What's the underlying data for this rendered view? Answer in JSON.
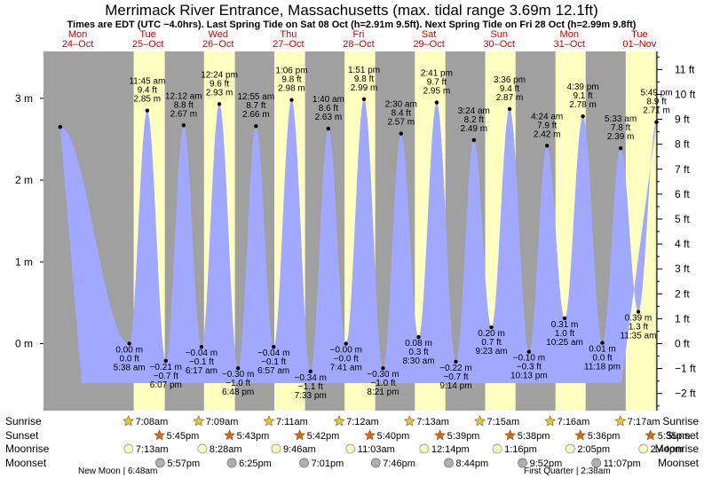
{
  "title": "Merrimack River Entrance, Massachusetts (max. tidal range 3.69m 12.1ft)",
  "subtitle": "Times are EDT (UTC −4.0hrs). Last Spring Tide on Sat 08 Oct (h=2.91m 9.5ft). Next Spring Tide on Fri 28 Oct (h=2.99m 9.8ft)",
  "colors": {
    "water": "#a0a9ff",
    "day": "#ffffc0",
    "night": "#a0a0a0",
    "day_label": "#cc0000",
    "sun": "#e8c840",
    "sunset": "#e06020",
    "moonrise": "#ffffc0",
    "moonset": "#b0b0b0"
  },
  "days": [
    {
      "dow": "Mon",
      "date": "24–Oct"
    },
    {
      "dow": "Tue",
      "date": "25–Oct"
    },
    {
      "dow": "Wed",
      "date": "26–Oct"
    },
    {
      "dow": "Thu",
      "date": "27–Oct"
    },
    {
      "dow": "Fri",
      "date": "28–Oct"
    },
    {
      "dow": "Sat",
      "date": "29–Oct"
    },
    {
      "dow": "Sun",
      "date": "30–Oct"
    },
    {
      "dow": "Mon",
      "date": "31–Oct"
    },
    {
      "dow": "Tue",
      "date": "01–Nov"
    }
  ],
  "chart_data": {
    "type": "area",
    "title": "Merrimack River Entrance, Massachusetts (max. tidal range 3.69m 12.1ft)",
    "y_left_unit": "m",
    "y_left_ticks": [
      "0 m",
      "1 m",
      "2 m",
      "3 m"
    ],
    "y_left_tick_values": [
      0,
      1,
      2,
      3
    ],
    "y_right_ticks": [
      "−2 ft",
      "−1 ft",
      "0 ft",
      "1 ft",
      "2 ft",
      "3 ft",
      "4 ft",
      "5 ft",
      "6 ft",
      "7 ft",
      "8 ft",
      "9 ft",
      "10 ft",
      "11 ft"
    ],
    "y_right_tick_values": [
      -2,
      -1,
      0,
      1,
      2,
      3,
      4,
      5,
      6,
      7,
      8,
      9,
      10,
      11
    ],
    "ylim_m": [
      -0.7,
      3.6
    ],
    "tides": [
      {
        "day": 0.25,
        "h": 2.65,
        "type": "high",
        "labels": []
      },
      {
        "day": 1.2347,
        "h": 0.0,
        "type": "low",
        "labels": [
          "0.00 m",
          "0.0 ft",
          "5:38 am"
        ]
      },
      {
        "day": 1.4896,
        "h": 2.85,
        "type": "high",
        "labels": [
          "11:45 am",
          "9.4 ft",
          "2.85 m"
        ]
      },
      {
        "day": 1.7549,
        "h": -0.21,
        "type": "low",
        "labels": [
          "−0.21 m",
          "−0.7 ft",
          "6:07 pm"
        ]
      },
      {
        "day": 2.0083,
        "h": 2.67,
        "type": "high",
        "labels": [
          "12:12 am",
          "8.8 ft",
          "2.67 m"
        ]
      },
      {
        "day": 2.2618,
        "h": -0.04,
        "type": "low",
        "labels": [
          "−0.04 m",
          "−0.1 ft",
          "6:17 am"
        ]
      },
      {
        "day": 2.5167,
        "h": 2.93,
        "type": "high",
        "labels": [
          "12:24 pm",
          "9.6 ft",
          "2.93 m"
        ]
      },
      {
        "day": 2.7833,
        "h": -0.3,
        "type": "low",
        "labels": [
          "−0.30 m",
          "−1.0 ft",
          "6:48 pm"
        ]
      },
      {
        "day": 3.0382,
        "h": 2.66,
        "type": "high",
        "labels": [
          "12:55 am",
          "8.7 ft",
          "2.66 m"
        ]
      },
      {
        "day": 3.2896,
        "h": -0.04,
        "type": "low",
        "labels": [
          "−0.04 m",
          "−0.1 ft",
          "6:57 am"
        ]
      },
      {
        "day": 3.5458,
        "h": 2.98,
        "type": "high",
        "labels": [
          "1:06 pm",
          "9.8 ft",
          "2.98 m"
        ]
      },
      {
        "day": 3.8146,
        "h": -0.34,
        "type": "low",
        "labels": [
          "−0.34 m",
          "−1.1 ft",
          "7:33 pm"
        ]
      },
      {
        "day": 4.0694,
        "h": 2.63,
        "type": "high",
        "labels": [
          "1:40 am",
          "8.6 ft",
          "2.63 m"
        ]
      },
      {
        "day": 4.3201,
        "h": -0.0,
        "type": "low",
        "labels": [
          "−0.00 m",
          "−0.0 ft",
          "7:41 am"
        ]
      },
      {
        "day": 4.5771,
        "h": 2.99,
        "type": "high",
        "labels": [
          "1:51 pm",
          "9.8 ft",
          "2.99 m"
        ]
      },
      {
        "day": 4.8479,
        "h": -0.3,
        "type": "low",
        "labels": [
          "−0.30 m",
          "−1.0 ft",
          "8:21 pm"
        ]
      },
      {
        "day": 5.1042,
        "h": 2.57,
        "type": "high",
        "labels": [
          "2:30 am",
          "8.4 ft",
          "2.57 m"
        ]
      },
      {
        "day": 5.3542,
        "h": 0.08,
        "type": "low",
        "labels": [
          "0.08 m",
          "0.3 ft",
          "8:30 am"
        ]
      },
      {
        "day": 5.6118,
        "h": 2.95,
        "type": "high",
        "labels": [
          "2:41 pm",
          "9.7 ft",
          "2.95 m"
        ]
      },
      {
        "day": 5.8847,
        "h": -0.22,
        "type": "low",
        "labels": [
          "−0.22 m",
          "−0.7 ft",
          "9:14 pm"
        ]
      },
      {
        "day": 6.1417,
        "h": 2.49,
        "type": "high",
        "labels": [
          "3:24 am",
          "8.2 ft",
          "2.49 m"
        ]
      },
      {
        "day": 6.391,
        "h": 0.2,
        "type": "low",
        "labels": [
          "0.20 m",
          "0.7 ft",
          "9:23 am"
        ]
      },
      {
        "day": 6.65,
        "h": 2.87,
        "type": "high",
        "labels": [
          "3:36 pm",
          "9.4 ft",
          "2.87 m"
        ]
      },
      {
        "day": 6.9257,
        "h": -0.1,
        "type": "low",
        "labels": [
          "−0.10 m",
          "−0.3 ft",
          "10:13 pm"
        ]
      },
      {
        "day": 7.1833,
        "h": 2.42,
        "type": "high",
        "labels": [
          "4:24 am",
          "7.9 ft",
          "2.42 m"
        ]
      },
      {
        "day": 7.434,
        "h": 0.31,
        "type": "low",
        "labels": [
          "0.31 m",
          "1.0 ft",
          "10:25 am"
        ]
      },
      {
        "day": 7.6938,
        "h": 2.78,
        "type": "high",
        "labels": [
          "4:39 pm",
          "9.1 ft",
          "2.78 m"
        ]
      },
      {
        "day": 7.9708,
        "h": 0.01,
        "type": "low",
        "labels": [
          "0.01 m",
          "0.0 ft",
          "11:18 pm"
        ]
      },
      {
        "day": 8.2313,
        "h": 2.39,
        "type": "high",
        "labels": [
          "5:33 am",
          "7.8 ft",
          "2.39 m"
        ]
      },
      {
        "day": 8.4826,
        "h": 0.39,
        "type": "low",
        "labels": [
          "0.39 m",
          "1.3 ft",
          "11:35 am"
        ]
      },
      {
        "day": 8.7424,
        "h": 2.71,
        "type": "high",
        "labels": [
          "5:49 pm",
          "8.9 ft",
          "2.71 m"
        ]
      }
    ],
    "daylight": [
      {
        "day": 1,
        "rise": 0.2972,
        "set": 0.7396
      },
      {
        "day": 2,
        "rise": 0.2979,
        "set": 0.7382
      },
      {
        "day": 3,
        "rise": 0.2993,
        "set": 0.7375
      },
      {
        "day": 4,
        "rise": 0.3,
        "set": 0.7361
      },
      {
        "day": 5,
        "rise": 0.3007,
        "set": 0.7354
      },
      {
        "day": 6,
        "rise": 0.3021,
        "set": 0.7347
      },
      {
        "day": 7,
        "rise": 0.3028,
        "set": 0.7333
      },
      {
        "day": 8,
        "rise": 0.3035,
        "set": 0.7326
      }
    ]
  },
  "rows": {
    "sunrise_label": "Sunrise",
    "sunset_label": "Sunset",
    "moonrise_label": "Moonrise",
    "moonset_label": "Moonset",
    "sunrise": [
      {
        "day": 1.2972,
        "text": "7:08am"
      },
      {
        "day": 2.2979,
        "text": "7:09am"
      },
      {
        "day": 3.2993,
        "text": "7:11am"
      },
      {
        "day": 4.3,
        "text": "7:12am"
      },
      {
        "day": 5.3007,
        "text": "7:13am"
      },
      {
        "day": 6.3021,
        "text": "7:15am"
      },
      {
        "day": 7.3028,
        "text": "7:16am"
      },
      {
        "day": 8.3035,
        "text": "7:17am"
      }
    ],
    "sunset": [
      {
        "day": 1.7396,
        "text": "5:45pm"
      },
      {
        "day": 2.7382,
        "text": "5:43pm"
      },
      {
        "day": 3.7375,
        "text": "5:42pm"
      },
      {
        "day": 4.7361,
        "text": "5:40pm"
      },
      {
        "day": 5.7354,
        "text": "5:39pm"
      },
      {
        "day": 6.7347,
        "text": "5:38pm"
      },
      {
        "day": 7.7333,
        "text": "5:36pm"
      },
      {
        "day": 8.7326,
        "text": "5:35pm"
      }
    ],
    "moonrise": [
      {
        "day": 1.3,
        "text": "7:13am"
      },
      {
        "day": 2.35,
        "text": "8:28am"
      },
      {
        "day": 3.4,
        "text": "9:46am"
      },
      {
        "day": 4.46,
        "text": "11:03am"
      },
      {
        "day": 5.51,
        "text": "12:14pm"
      },
      {
        "day": 6.55,
        "text": "1:16pm"
      },
      {
        "day": 7.59,
        "text": "2:05pm"
      },
      {
        "day": 8.63,
        "text": "2:44pm"
      }
    ],
    "moonset": [
      {
        "day": 1.75,
        "text": "5:57pm"
      },
      {
        "day": 2.77,
        "text": "6:25pm"
      },
      {
        "day": 3.8,
        "text": "7:01pm"
      },
      {
        "day": 4.82,
        "text": "7:46pm"
      },
      {
        "day": 5.86,
        "text": "8:44pm"
      },
      {
        "day": 6.91,
        "text": "9:52pm"
      },
      {
        "day": 7.96,
        "text": "11:07pm"
      }
    ],
    "new_moon": "New Moon | 6:48am",
    "first_quarter": "First Quarter | 2:38am"
  }
}
